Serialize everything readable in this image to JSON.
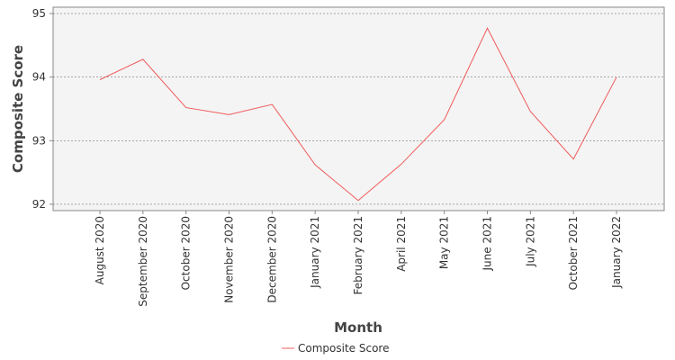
{
  "chart_data": {
    "type": "line",
    "x_label": "Month",
    "y_label": "Composite Score",
    "categories": [
      "August 2020",
      "September 2020",
      "October 2020",
      "November 2020",
      "December 2020",
      "January 2021",
      "February 2021",
      "April 2021",
      "May 2021",
      "June 2021",
      "July 2021",
      "October 2021",
      "January 2022"
    ],
    "series": [
      {
        "name": "Composite Score",
        "color": "#f05a5a",
        "values": [
          93.96,
          94.28,
          93.52,
          93.41,
          93.57,
          92.62,
          92.06,
          92.63,
          93.33,
          94.77,
          93.46,
          92.71,
          94.0
        ]
      }
    ],
    "ylim": [
      91.9,
      95.1
    ],
    "yticks": [
      92,
      93,
      94,
      95
    ],
    "grid": true
  }
}
